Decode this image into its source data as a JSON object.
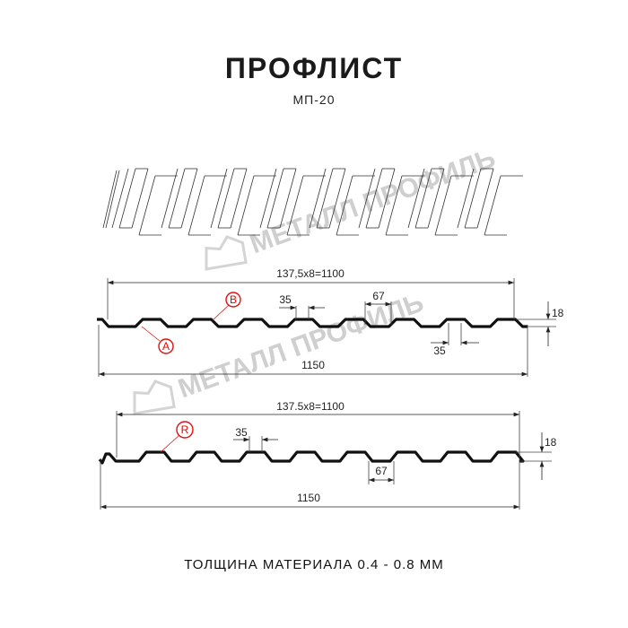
{
  "header": {
    "title": "ПРОФЛИСТ",
    "subtitle": "МП-20"
  },
  "watermark": {
    "text": "МЕТАЛЛ ПРОФИЛЬ"
  },
  "profile_a": {
    "pitch_label": "137,5x8=1100",
    "width_label": "1150",
    "rib_top_label": "35",
    "rib_bottom_label": "35",
    "valley_label": "67",
    "height_label": "18",
    "marker_a": "A",
    "marker_b": "B"
  },
  "profile_r": {
    "pitch_label": "137.5x8=1100",
    "width_label": "1150",
    "rib_top_label": "35",
    "valley_label": "67",
    "height_label": "18",
    "marker_r": "R"
  },
  "footer": {
    "thickness": "ТОЛЩИНА МАТЕРИАЛА 0.4 - 0.8 ММ"
  },
  "colors": {
    "line": "#111111",
    "marker": "#e01010",
    "watermark": "#cfcfcf"
  }
}
